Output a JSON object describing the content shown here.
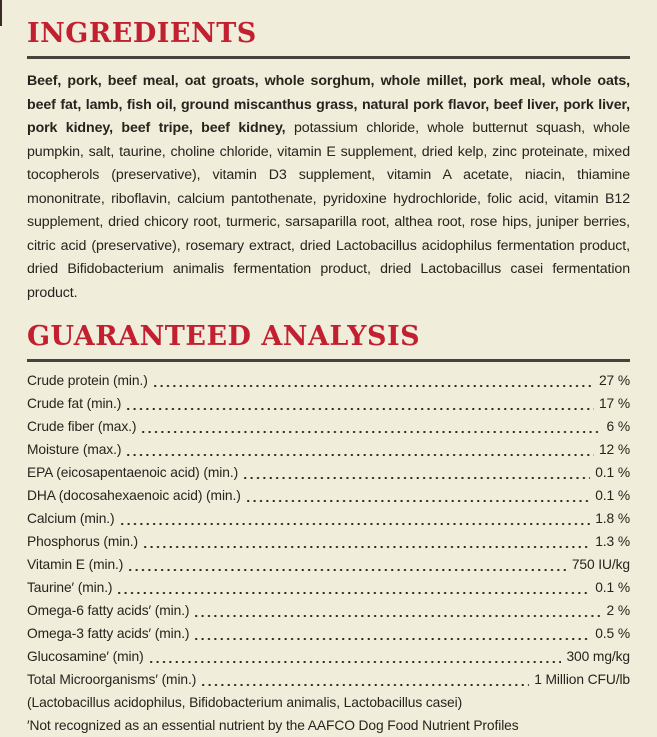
{
  "page": {
    "background_color": "#f0edda",
    "accent_red": "#c22031",
    "rule_color": "#45443c",
    "text_color": "#26241d"
  },
  "ingredients": {
    "heading": "INGREDIENTS",
    "bold_text": "Beef, pork, beef meal, oat groats, whole sorghum, whole millet, pork meal, whole oats, beef fat, lamb, fish oil, ground miscanthus grass, natural pork flavor, beef liver, pork liver, pork kidney, beef tripe, beef kidney,",
    "regular_text": " potassium chloride, whole butternut squash, whole pumpkin, salt, taurine, choline chloride, vitamin E supplement, dried kelp, zinc proteinate, mixed tocopherols (preservative), vitamin D3 supplement, vitamin A acetate, niacin, thiamine mononitrate, riboflavin, calcium pantothenate, pyridoxine hydrochloride, folic acid, vitamin B12 supplement, dried chicory root, turmeric, sarsaparilla root, althea root, rose hips, juniper berries, citric acid (preservative), rosemary extract, dried Lactobacillus acidophilus fermentation product, dried Bifidobacterium animalis fermentation product, dried Lactobacillus casei fermentation product."
  },
  "guaranteed_analysis": {
    "heading": "GUARANTEED ANALYSIS",
    "rows": [
      {
        "label": "Crude protein (min.)",
        "value": "27 %"
      },
      {
        "label": "Crude fat (min.)",
        "value": "17 %"
      },
      {
        "label": "Crude fiber (max.)",
        "value": "6 %"
      },
      {
        "label": "Moisture (max.)",
        "value": "12 %"
      },
      {
        "label": "EPA (eicosapentaenoic acid) (min.)",
        "value": "0.1 %"
      },
      {
        "label": "DHA (docosahexaenoic acid) (min.)",
        "value": "0.1 %"
      },
      {
        "label": "Calcium (min.)",
        "value": "1.8 %"
      },
      {
        "label": "Phosphorus (min.)",
        "value": "1.3 %"
      },
      {
        "label": "Vitamin E (min.)",
        "value": "750 IU/kg"
      },
      {
        "label": "Taurine′ (min.)",
        "value": "0.1 %"
      },
      {
        "label": "Omega-6 fatty acids′ (min.)",
        "value": "2 %"
      },
      {
        "label": "Omega-3 fatty acids′ (min.)",
        "value": "0.5 %"
      },
      {
        "label": "Glucosamine′ (min)",
        "value": "300 mg/kg"
      },
      {
        "label": "Total Microorganisms′ (min.)",
        "value": "1 Million CFU/lb"
      }
    ],
    "microorganisms_detail": "(Lactobacillus acidophilus, Bifidobacterium animalis, Lactobacillus casei)",
    "footnote": "′Not recognized as an essential nutrient by the AAFCO Dog Food Nutrient Profiles"
  }
}
